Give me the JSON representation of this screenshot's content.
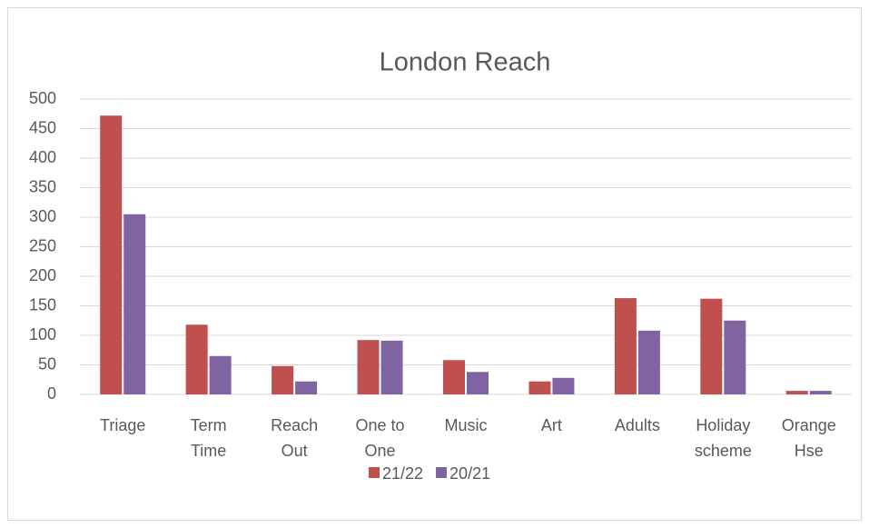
{
  "chart_data": {
    "type": "bar",
    "title": "London Reach",
    "categories": [
      "Triage",
      "Term\nTime",
      "Reach\nOut",
      "One to\nOne",
      "Music",
      "Art",
      "Adults",
      "Holiday\nscheme",
      "Orange\nHse"
    ],
    "series": [
      {
        "name": "21/22",
        "color": "#c0504d",
        "values": [
          472,
          118,
          48,
          92,
          58,
          22,
          163,
          162,
          6
        ]
      },
      {
        "name": "20/21",
        "color": "#8064a2",
        "values": [
          305,
          65,
          22,
          91,
          38,
          28,
          108,
          125,
          6
        ]
      }
    ],
    "ylim": [
      0,
      500
    ],
    "yticks": [
      0,
      50,
      100,
      150,
      200,
      250,
      300,
      350,
      400,
      450,
      500
    ],
    "grid": true,
    "legend": "bottom"
  }
}
